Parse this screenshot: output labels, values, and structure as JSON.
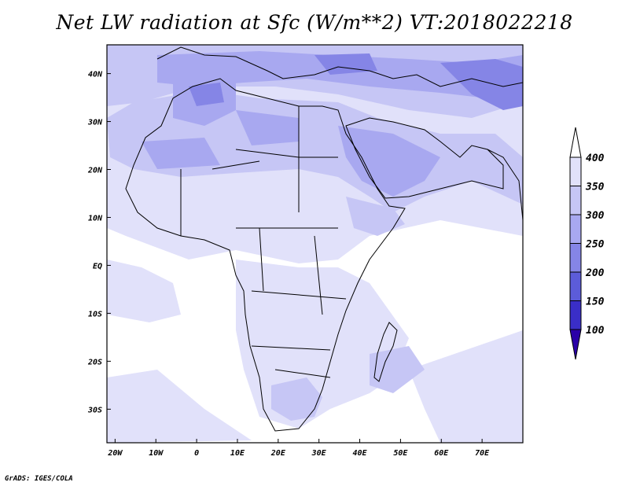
{
  "title": "Net LW radiation at Sfc (W/m**2) VT:2018022218",
  "credit": "GrADS: IGES/COLA",
  "map": {
    "lon_labels": [
      "20W",
      "10W",
      "0",
      "10E",
      "20E",
      "30E",
      "40E",
      "50E",
      "60E",
      "70E"
    ],
    "lat_labels": [
      "40N",
      "30N",
      "20N",
      "10N",
      "EQ",
      "10S",
      "20S",
      "30S"
    ],
    "lon_range": [
      -22,
      80
    ],
    "lat_range": [
      -37,
      46
    ]
  },
  "colorbar": {
    "labels": [
      "400",
      "350",
      "300",
      "250",
      "200",
      "150",
      "100"
    ],
    "colors": [
      "#ffffff",
      "#e1e1fa",
      "#c6c6f5",
      "#a8a8f0",
      "#8585e6",
      "#5c5cd9",
      "#3a2ec8",
      "#2a00a8"
    ]
  },
  "field_colors": {
    "ocean": "#ffffff",
    "light": "#e1e1fa",
    "mid": "#c6c6f5",
    "dark": "#a8a8f0",
    "darker": "#8585e6"
  }
}
